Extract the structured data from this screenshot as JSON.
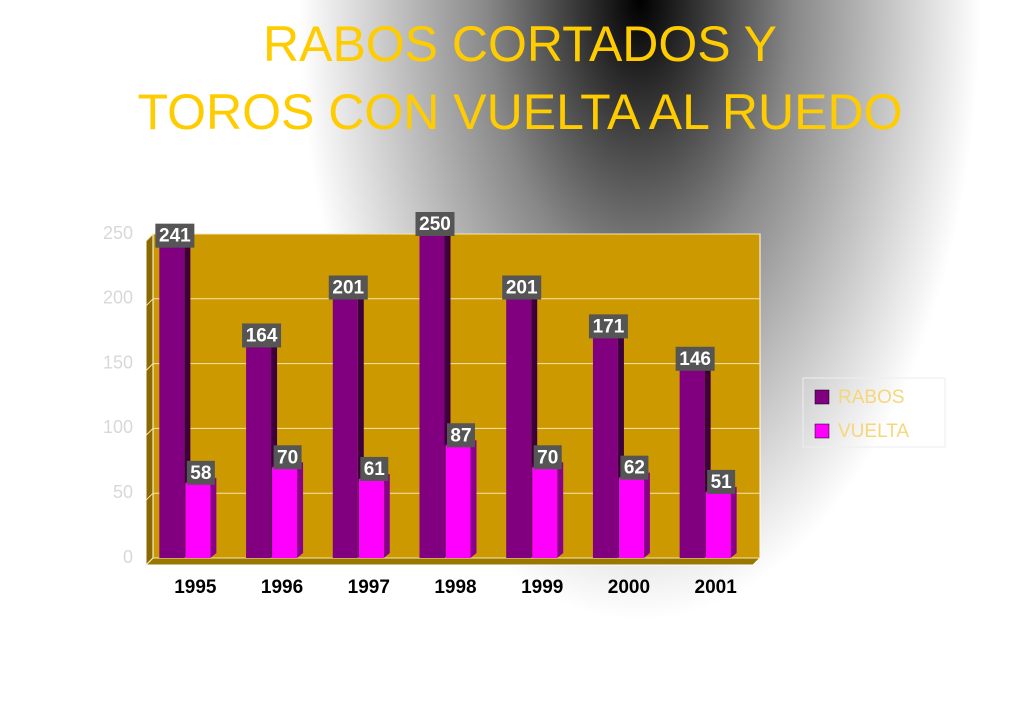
{
  "chart_data": {
    "type": "bar",
    "title": [
      "RABOS CORTADOS Y",
      "TOROS CON VUELTA AL RUEDO"
    ],
    "categories": [
      "1995",
      "1996",
      "1997",
      "1998",
      "1999",
      "2000",
      "2001"
    ],
    "series": [
      {
        "name": "RABOS",
        "color": "#800080",
        "values": [
          241,
          164,
          201,
          250,
          201,
          171,
          146
        ]
      },
      {
        "name": "VUELTA",
        "color": "#ff00ff",
        "values": [
          58,
          70,
          61,
          87,
          70,
          62,
          51
        ]
      }
    ],
    "ylim": [
      0,
      250
    ],
    "yticks": [
      0,
      50,
      100,
      150,
      200,
      250
    ],
    "grid": true,
    "plot_color": "#cc9900",
    "legend": "right"
  }
}
